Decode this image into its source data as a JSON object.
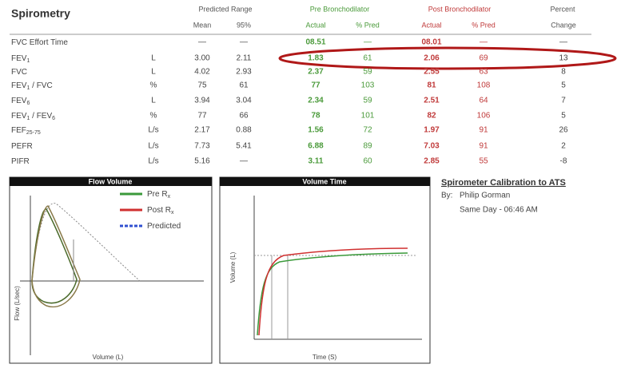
{
  "header": {
    "title": "Spirometry",
    "predicted_range": "Predicted Range",
    "pre": "Pre Bronchodilator",
    "post": "Post Bronchodilator",
    "percent": "Percent",
    "columns": [
      "Mean",
      "95%",
      "Actual",
      "% Pred",
      "Actual",
      "% Pred",
      "Change"
    ]
  },
  "table": {
    "rows": [
      {
        "label": [
          "FVC Effort Time"
        ],
        "cells": [
          "—",
          "—",
          "08.51",
          "—",
          "08.01",
          "—",
          "—"
        ]
      },
      {
        "label": [
          "FEV",
          "1"
        ],
        "unit": "L",
        "cells": [
          "3.00",
          "2.11",
          "1.83",
          "61",
          "2.06",
          "69",
          "13"
        ]
      },
      {
        "label": [
          "FVC"
        ],
        "unit": "L",
        "cells": [
          "4.02",
          "2.93",
          "2.37",
          "59",
          "2.55",
          "63",
          "8"
        ]
      },
      {
        "label": [
          "FEV",
          "1",
          " / FVC"
        ],
        "unit": "%",
        "cells": [
          "75",
          "61",
          "77",
          "103",
          "81",
          "108",
          "5"
        ]
      },
      {
        "label": [
          "FEV",
          "6"
        ],
        "unit": "L",
        "cells": [
          "3.94",
          "3.04",
          "2.34",
          "59",
          "2.51",
          "64",
          "7"
        ]
      },
      {
        "label": [
          "FEV",
          "1",
          " / FEV",
          "6"
        ],
        "unit": "%",
        "cells": [
          "77",
          "66",
          "78",
          "101",
          "82",
          "106",
          "5"
        ]
      },
      {
        "label": [
          "FEF",
          "25-75"
        ],
        "unit": "L/s",
        "cells": [
          "2.17",
          "0.88",
          "1.56",
          "72",
          "1.97",
          "91",
          "26"
        ]
      },
      {
        "label": [
          "PEFR"
        ],
        "unit": "L/s",
        "cells": [
          "7.73",
          "5.41",
          "6.88",
          "89",
          "7.03",
          "91",
          "2"
        ]
      },
      {
        "label": [
          "PIFR"
        ],
        "unit": "L/s",
        "cells": [
          "5.16",
          "—",
          "3.11",
          "60",
          "2.85",
          "55",
          "-8"
        ]
      }
    ]
  },
  "flow_volume": {
    "title": "Flow Volume",
    "x_label": "Volume (L)",
    "y_label": "Flow (L/sec)",
    "legend": [
      [
        "Pre R",
        "x"
      ],
      [
        "Post R",
        "x"
      ],
      [
        "Predicted"
      ]
    ]
  },
  "volume_time": {
    "title": "Volume Time",
    "x_label": "Time (S)",
    "y_label": "Volume (L)"
  },
  "calibration": {
    "title": "Spirometer Calibration to ATS",
    "by": "By:",
    "name": "Philip Gorman",
    "time": "Same Day - 06:46 AM"
  }
}
